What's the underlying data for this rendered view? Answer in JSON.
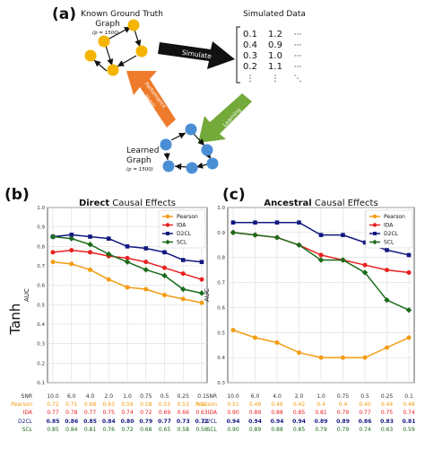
{
  "panel_a": {
    "letter": "(a)",
    "known_title_line1": "Known Ground Truth",
    "known_title_line2": "Graph",
    "known_p": "(p = 1500)",
    "simulated_title": "Simulated Data",
    "matrix_rows": [
      [
        "0.1",
        "1.2",
        "···"
      ],
      [
        "0.4",
        "0.9",
        "···"
      ],
      [
        "0.3",
        "1.0",
        "···"
      ],
      [
        "0.2",
        "1.1",
        "···"
      ],
      [
        "⋮",
        "⋮",
        "⋱"
      ]
    ],
    "arrow_simulate": "Simulate",
    "arrow_performance_line1": "Performance",
    "arrow_performance_line2": "Metric",
    "arrow_learning": "Learning",
    "learned_title_line1": "Learned",
    "learned_title_line2": "Graph",
    "learned_p": "(p = 1500)",
    "colors": {
      "known_nodes": "#f4b400",
      "learned_nodes": "#4a8fd6",
      "simulate_arrow": "#111111",
      "performance_arrow": "#ee7b2c",
      "learning_arrow": "#73aa3a"
    }
  },
  "row_label": "Tanh",
  "chart_data": [
    {
      "type": "line",
      "letter": "(b)",
      "title_bold": "Direct",
      "title_rest": " Causal Effects",
      "ylabel": "AUC",
      "ylim": [
        0.1,
        1.0
      ],
      "yticks": [
        "0.1",
        "0.2",
        "0.3",
        "0.4",
        "0.5",
        "0.6",
        "0.7",
        "0.8",
        "0.9",
        "1.0"
      ],
      "categories": [
        "10.0",
        "6.0",
        "4.0",
        "2.0",
        "1.0",
        "0.75",
        "0.5",
        "0.25",
        "0.1"
      ],
      "grid": true,
      "legend_position": "top-right",
      "series": [
        {
          "name": "Pearson",
          "color": "#f39c12",
          "marker": "circle",
          "values": [
            0.72,
            0.71,
            0.68,
            0.63,
            0.59,
            0.58,
            0.55,
            0.53,
            0.51
          ],
          "labels": [
            "0.72",
            "0.71",
            "0.68",
            "0.63",
            "0.59",
            "0.58",
            "0.55",
            "0.53",
            "0.51"
          ]
        },
        {
          "name": "IDA",
          "color": "#e8201f",
          "marker": "circle",
          "values": [
            0.77,
            0.78,
            0.77,
            0.75,
            0.74,
            0.72,
            0.69,
            0.66,
            0.63
          ],
          "labels": [
            "0.77",
            "0.78",
            "0.77",
            "0.75",
            "0.74",
            "0.72",
            "0.69",
            "0.66",
            "0.63"
          ]
        },
        {
          "name": "D2CL",
          "color": "#121880",
          "marker": "square",
          "values": [
            0.85,
            0.86,
            0.85,
            0.84,
            0.8,
            0.79,
            0.77,
            0.73,
            0.72
          ],
          "labels": [
            "0.85",
            "0.86",
            "0.85",
            "0.84",
            "0.80",
            "0.79",
            "0.77",
            "0.73",
            "0.72"
          ]
        },
        {
          "name": "SCL",
          "color": "#1a6b1a",
          "marker": "diamond",
          "values": [
            0.85,
            0.84,
            0.81,
            0.76,
            0.72,
            0.68,
            0.65,
            0.58,
            0.56
          ],
          "labels": [
            "0.85",
            "0.84",
            "0.81",
            "0.76",
            "0.72",
            "0.68",
            "0.65",
            "0.58",
            "0.56"
          ]
        }
      ],
      "table_rows": [
        "SNR",
        "Pearson",
        "IDA",
        "D2CL",
        "SCL"
      ]
    },
    {
      "type": "line",
      "letter": "(c)",
      "title_bold": "Ancestral",
      "title_rest": " Causal Effects",
      "ylabel": "AUC",
      "ylim": [
        0.3,
        1.0
      ],
      "yticks": [
        "0.3",
        "0.4",
        "0.5",
        "0.6",
        "0.7",
        "0.8",
        "0.9",
        "1.0"
      ],
      "categories": [
        "10.0",
        "6.0",
        "4.0",
        "2.0",
        "1.0",
        "0.75",
        "0.5",
        "0.25",
        "0.1"
      ],
      "grid": true,
      "legend_position": "top-right",
      "series": [
        {
          "name": "Pearson",
          "color": "#f39c12",
          "marker": "circle",
          "values": [
            0.51,
            0.48,
            0.46,
            0.42,
            0.4,
            0.4,
            0.4,
            0.44,
            0.48
          ],
          "labels": [
            "0.51",
            "0.48",
            "0.46",
            "0.42",
            "0.4",
            "0.4",
            "0.40",
            "0.44",
            "0.48"
          ]
        },
        {
          "name": "IDA",
          "color": "#e8201f",
          "marker": "circle",
          "values": [
            0.9,
            0.89,
            0.88,
            0.85,
            0.81,
            0.79,
            0.77,
            0.75,
            0.74
          ],
          "labels": [
            "0.90",
            "0.89",
            "0.88",
            "0.85",
            "0.81",
            "0.79",
            "0.77",
            "0.75",
            "0.74"
          ]
        },
        {
          "name": "D2CL",
          "color": "#121880",
          "marker": "square",
          "values": [
            0.94,
            0.94,
            0.94,
            0.94,
            0.89,
            0.89,
            0.86,
            0.83,
            0.81
          ],
          "labels": [
            "0.94",
            "0.94",
            "0.94",
            "0.94",
            "0.89",
            "0.89",
            "0.86",
            "0.83",
            "0.81"
          ]
        },
        {
          "name": "SCL",
          "color": "#1a6b1a",
          "marker": "diamond",
          "values": [
            0.9,
            0.89,
            0.88,
            0.85,
            0.79,
            0.79,
            0.74,
            0.63,
            0.59
          ],
          "labels": [
            "0.90",
            "0.89",
            "0.88",
            "0.85",
            "0.79",
            "0.79",
            "0.74",
            "0.63",
            "0.59"
          ]
        }
      ],
      "table_rows": [
        "SNR",
        "Pearson",
        "IDA",
        "D2CL",
        "SCL"
      ]
    }
  ]
}
